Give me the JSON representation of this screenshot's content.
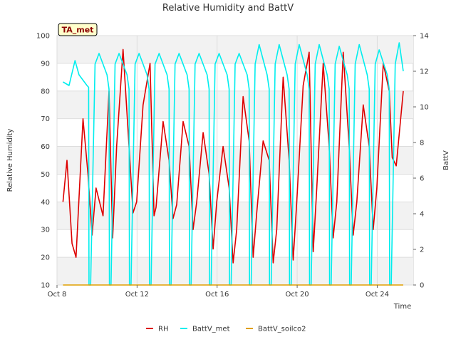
{
  "chart_data": {
    "type": "line",
    "title": "Relative Humidity and BattV",
    "badge": "TA_met",
    "xlabel": "Time",
    "ylabel": "Relative Humidity",
    "y2label": "BattV",
    "xlim_days": [
      8,
      25.8
    ],
    "x_ticks": [
      {
        "day": 8,
        "label": "Oct 8"
      },
      {
        "day": 12,
        "label": "Oct 12"
      },
      {
        "day": 16,
        "label": "Oct 16"
      },
      {
        "day": 20,
        "label": "Oct 20"
      },
      {
        "day": 24,
        "label": "Oct 24"
      }
    ],
    "ylim": [
      10,
      100
    ],
    "y_ticks": [
      10,
      20,
      30,
      40,
      50,
      60,
      70,
      80,
      90,
      100
    ],
    "y2lim": [
      0,
      14
    ],
    "y2_ticks": [
      0,
      2,
      4,
      6,
      8,
      10,
      12,
      14
    ],
    "grid": true,
    "legend_position": "bottom",
    "series": [
      {
        "name": "RH",
        "color": "#dd0000",
        "axis": "left",
        "x": [
          8.3,
          8.5,
          8.75,
          8.95,
          9.3,
          9.55,
          9.75,
          9.95,
          10.3,
          10.6,
          10.78,
          10.98,
          11.3,
          11.6,
          11.8,
          11.98,
          12.3,
          12.65,
          12.85,
          12.95,
          13.3,
          13.6,
          13.8,
          13.98,
          14.3,
          14.6,
          14.8,
          14.98,
          15.3,
          15.6,
          15.8,
          15.98,
          16.3,
          16.6,
          16.8,
          16.98,
          17.3,
          17.6,
          17.8,
          17.98,
          18.3,
          18.6,
          18.8,
          18.98,
          19.3,
          19.6,
          19.8,
          19.98,
          20.3,
          20.6,
          20.8,
          20.98,
          21.3,
          21.6,
          21.8,
          21.98,
          22.3,
          22.6,
          22.8,
          22.98,
          23.3,
          23.6,
          23.8,
          23.98,
          24.3,
          24.6,
          24.75,
          24.95,
          25.3
        ],
        "y": [
          40,
          55,
          25,
          20,
          70,
          50,
          28,
          45,
          35,
          80,
          27,
          60,
          95,
          60,
          36,
          40,
          75,
          90,
          35,
          38,
          69,
          55,
          34,
          39,
          69,
          60,
          30,
          40,
          65,
          50,
          23,
          40,
          60,
          45,
          18,
          30,
          78,
          62,
          20,
          36,
          62,
          55,
          18,
          30,
          85,
          55,
          19,
          40,
          82,
          94,
          22,
          45,
          90,
          60,
          27,
          40,
          94,
          60,
          28,
          40,
          75,
          60,
          30,
          45,
          90,
          80,
          56,
          53,
          80
        ]
      },
      {
        "name": "BattV_met",
        "color": "#00eeee",
        "axis": "right",
        "x": [
          8.3,
          8.6,
          8.9,
          9.1,
          9.5,
          9.58,
          9.6,
          9.68,
          9.9,
          10.1,
          10.5,
          10.6,
          10.62,
          10.7,
          10.9,
          11.1,
          11.5,
          11.6,
          11.62,
          11.7,
          11.9,
          12.1,
          12.5,
          12.6,
          12.62,
          12.7,
          12.9,
          13.1,
          13.5,
          13.6,
          13.62,
          13.7,
          13.9,
          14.1,
          14.5,
          14.6,
          14.62,
          14.7,
          14.9,
          15.1,
          15.5,
          15.6,
          15.62,
          15.7,
          15.9,
          16.1,
          16.5,
          16.6,
          16.62,
          16.7,
          16.9,
          17.1,
          17.5,
          17.6,
          17.62,
          17.7,
          17.9,
          18.1,
          18.5,
          18.6,
          18.62,
          18.7,
          18.9,
          19.1,
          19.5,
          19.6,
          19.62,
          19.7,
          19.9,
          20.1,
          20.5,
          20.6,
          20.62,
          20.7,
          20.9,
          21.1,
          21.5,
          21.6,
          21.62,
          21.7,
          21.9,
          22.1,
          22.5,
          22.6,
          22.62,
          22.7,
          22.9,
          23.1,
          23.5,
          23.6,
          23.62,
          23.7,
          23.9,
          24.1,
          24.5,
          24.6,
          24.62,
          24.7,
          24.9,
          25.1,
          25.3
        ],
        "y": [
          11.4,
          11.2,
          12.6,
          11.8,
          11.2,
          11.1,
          0,
          0,
          12.4,
          13.0,
          11.8,
          11.0,
          0,
          0,
          12.4,
          13.0,
          11.8,
          11.0,
          0,
          0,
          12.4,
          13.0,
          11.8,
          11.0,
          0,
          0,
          12.4,
          13.0,
          11.8,
          11.0,
          0,
          0,
          12.4,
          13.0,
          11.8,
          11.0,
          0,
          0,
          12.4,
          13.0,
          11.8,
          11.0,
          0,
          0,
          12.4,
          13.0,
          11.8,
          11.0,
          0,
          0,
          12.4,
          13.0,
          11.8,
          11.0,
          0,
          0,
          12.4,
          13.5,
          11.8,
          11.0,
          0,
          0,
          12.4,
          13.5,
          11.8,
          11.0,
          0,
          0,
          12.4,
          13.5,
          11.8,
          11.0,
          0,
          0,
          12.4,
          13.5,
          11.8,
          11.0,
          0,
          0,
          12.4,
          13.4,
          11.8,
          11.0,
          0,
          0,
          12.4,
          13.5,
          11.8,
          11.0,
          0,
          0,
          12.4,
          13.2,
          11.8,
          11.0,
          0,
          0,
          12.4,
          13.6,
          12.0
        ]
      },
      {
        "name": "BattV_soilco2",
        "color": "#e0a000",
        "axis": "right",
        "x": [
          8.3,
          25.3
        ],
        "y": [
          0,
          0
        ]
      }
    ]
  }
}
